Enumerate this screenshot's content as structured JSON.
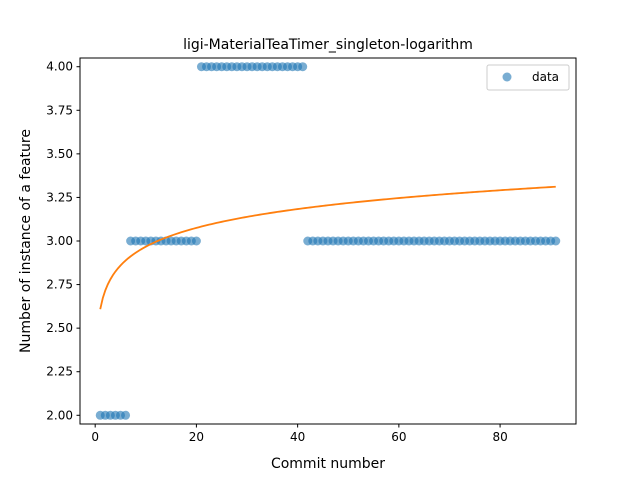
{
  "chart_data": {
    "type": "scatter",
    "title": "ligi-MaterialTeaTimer_singleton-logarithm",
    "xlabel": "Commit number",
    "ylabel": "Number of instance of a feature",
    "xlim": [
      -3,
      95
    ],
    "ylim": [
      1.95,
      4.05
    ],
    "xticks": [
      0,
      20,
      40,
      60,
      80
    ],
    "xtick_labels": [
      "0",
      "20",
      "40",
      "60",
      "80"
    ],
    "yticks": [
      2.0,
      2.25,
      2.5,
      2.75,
      3.0,
      3.25,
      3.5,
      3.75,
      4.0
    ],
    "ytick_labels": [
      "2.00",
      "2.25",
      "2.50",
      "2.75",
      "3.00",
      "3.25",
      "3.50",
      "3.75",
      "4.00"
    ],
    "grid": false,
    "legend_position": "top-right",
    "colors": {
      "data": "#1f77b4",
      "fit": "#ff7f0e",
      "axes": "#000000"
    },
    "series": [
      {
        "name": "data",
        "kind": "scatter",
        "segments": [
          {
            "x_start": 1,
            "x_end": 6,
            "y": 2.0
          },
          {
            "x_start": 7,
            "x_end": 20,
            "y": 3.0
          },
          {
            "x_start": 21,
            "x_end": 41,
            "y": 4.0
          },
          {
            "x_start": 42,
            "x_end": 91,
            "y": 3.0
          }
        ]
      },
      {
        "kind": "line",
        "model": "logarithmic",
        "x_range": [
          1,
          91
        ],
        "approx_points": [
          {
            "x": 1,
            "y": 2.61
          },
          {
            "x": 2,
            "y": 2.71
          },
          {
            "x": 5,
            "y": 2.84
          },
          {
            "x": 10,
            "y": 2.94
          },
          {
            "x": 20,
            "y": 3.05
          },
          {
            "x": 40,
            "y": 3.18
          },
          {
            "x": 60,
            "y": 3.24
          },
          {
            "x": 91,
            "y": 3.31
          }
        ],
        "coefficients": {
          "a": 2.6089,
          "b": 0.1557
        }
      }
    ]
  }
}
